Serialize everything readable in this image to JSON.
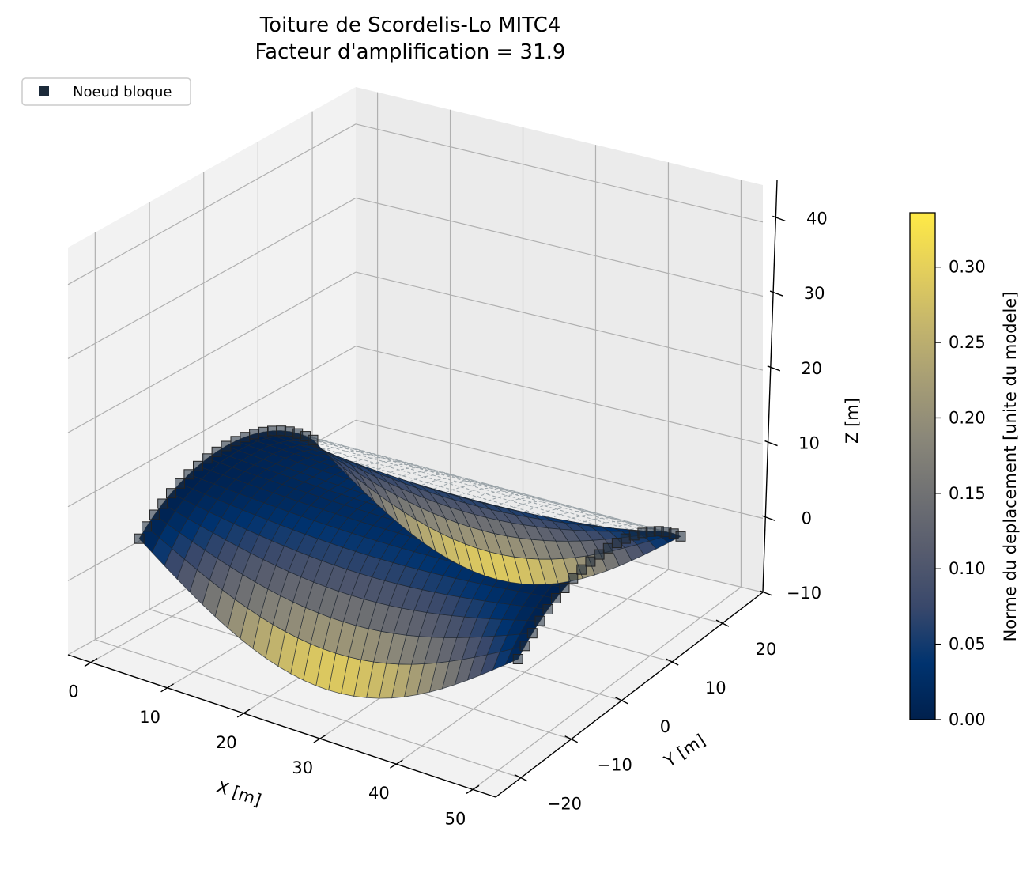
{
  "chart_data": {
    "type": "surface3d",
    "title_line1": "Toiture de Scordelis-Lo MITC4",
    "title_line2": "Facteur d'amplification = 31.9",
    "xlabel": "X [m]",
    "ylabel": "Y [m]",
    "zlabel": "Z [m]",
    "x_ticks": [
      "0",
      "10",
      "20",
      "30",
      "40",
      "50"
    ],
    "y_ticks": [
      "−20",
      "−10",
      "0",
      "10",
      "20"
    ],
    "z_ticks": [
      "−10",
      "0",
      "10",
      "20",
      "30",
      "40"
    ],
    "xlim": [
      -3,
      53
    ],
    "ylim": [
      -25,
      28
    ],
    "zlim": [
      -10,
      45
    ],
    "legend": {
      "label": "Noeud bloque",
      "marker": "square",
      "color": "#1c2a3a",
      "placement": "top-left"
    },
    "colorbar": {
      "label": "Norme du deplacement [unite du modele]",
      "ticks": [
        "0.00",
        "0.05",
        "0.10",
        "0.15",
        "0.20",
        "0.25",
        "0.30"
      ],
      "range": [
        0.0,
        0.336
      ],
      "colormap": "cividis",
      "colors": [
        "#00204d",
        "#00336f",
        "#39486b",
        "#575c6e",
        "#707173",
        "#8a8779",
        "#a69d75",
        "#c4b56c",
        "#e4cf5b",
        "#ffea46"
      ]
    },
    "mesh": {
      "length_x": 50,
      "radius": 25,
      "half_angle_deg": 40,
      "nx": 30,
      "ntheta": 20,
      "max_displacement": 0.336,
      "amplification": 31.9
    },
    "grid": true
  }
}
